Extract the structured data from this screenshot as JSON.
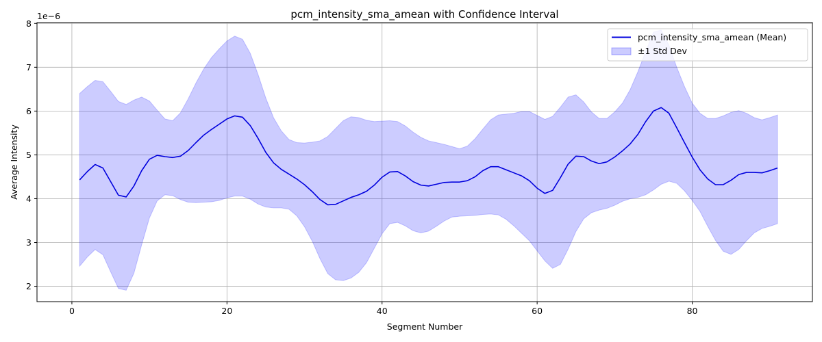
{
  "chart_data": {
    "type": "line",
    "title": "pcm_intensity_sma_amean with Confidence Interval",
    "xlabel": "Segment Number",
    "ylabel": "Average Intensity",
    "y_scale_note": "1e−6",
    "xlim": [
      -4.5,
      95.5
    ],
    "ylim": [
      1.65,
      8.02
    ],
    "xticks": [
      0,
      20,
      40,
      60,
      80
    ],
    "xtick_labels": [
      "0",
      "20",
      "40",
      "60",
      "80"
    ],
    "yticks": [
      2,
      3,
      4,
      5,
      6,
      7,
      8
    ],
    "ytick_labels": [
      "2",
      "3",
      "4",
      "5",
      "6",
      "7",
      "8"
    ],
    "grid": true,
    "legend_position": "top-right",
    "series": [
      {
        "name": "pcm_intensity_sma_amean (Mean)",
        "kind": "line",
        "color": "#0000dd",
        "x": [
          1,
          2,
          3,
          4,
          5,
          6,
          7,
          8,
          9,
          10,
          11,
          12,
          13,
          14,
          15,
          16,
          17,
          18,
          19,
          20,
          21,
          22,
          23,
          24,
          25,
          26,
          27,
          28,
          29,
          30,
          31,
          32,
          33,
          34,
          35,
          36,
          37,
          38,
          39,
          40,
          41,
          42,
          43,
          44,
          45,
          46,
          47,
          48,
          49,
          50,
          51,
          52,
          53,
          54,
          55,
          56,
          57,
          58,
          59,
          60,
          61,
          62,
          63,
          64,
          65,
          66,
          67,
          68,
          69,
          70,
          71,
          72,
          73,
          74,
          75,
          76,
          77,
          78,
          79,
          80,
          81,
          82,
          83,
          84,
          85,
          86,
          87,
          88,
          89,
          90,
          91
        ],
        "values": [
          4.43,
          4.62,
          4.78,
          4.7,
          4.39,
          4.08,
          4.04,
          4.29,
          4.64,
          4.9,
          4.99,
          4.96,
          4.94,
          4.97,
          5.1,
          5.28,
          5.45,
          5.58,
          5.7,
          5.82,
          5.89,
          5.86,
          5.67,
          5.38,
          5.06,
          4.82,
          4.67,
          4.56,
          4.45,
          4.32,
          4.16,
          3.98,
          3.86,
          3.87,
          3.95,
          4.03,
          4.09,
          4.17,
          4.31,
          4.49,
          4.61,
          4.62,
          4.52,
          4.39,
          4.31,
          4.29,
          4.33,
          4.37,
          4.38,
          4.38,
          4.41,
          4.5,
          4.64,
          4.73,
          4.73,
          4.66,
          4.59,
          4.52,
          4.41,
          4.24,
          4.12,
          4.19,
          4.48,
          4.79,
          4.97,
          4.96,
          4.86,
          4.8,
          4.84,
          4.95,
          5.09,
          5.25,
          5.47,
          5.76,
          6.0,
          6.08,
          5.95,
          5.62,
          5.28,
          4.95,
          4.66,
          4.45,
          4.32,
          4.32,
          4.42,
          4.55,
          4.6,
          4.6,
          4.59,
          4.64,
          4.7
        ]
      },
      {
        "name": "±1 Std Dev",
        "kind": "band",
        "color": "#0000ff",
        "x": [
          1,
          2,
          3,
          4,
          5,
          6,
          7,
          8,
          9,
          10,
          11,
          12,
          13,
          14,
          15,
          16,
          17,
          18,
          19,
          20,
          21,
          22,
          23,
          24,
          25,
          26,
          27,
          28,
          29,
          30,
          31,
          32,
          33,
          34,
          35,
          36,
          37,
          38,
          39,
          40,
          41,
          42,
          43,
          44,
          45,
          46,
          47,
          48,
          49,
          50,
          51,
          52,
          53,
          54,
          55,
          56,
          57,
          58,
          59,
          60,
          61,
          62,
          63,
          64,
          65,
          66,
          67,
          68,
          69,
          70,
          71,
          72,
          73,
          74,
          75,
          76,
          77,
          78,
          79,
          80,
          81,
          82,
          83,
          84,
          85,
          86,
          87,
          88,
          89,
          90,
          91
        ],
        "upper": [
          6.4,
          6.56,
          6.7,
          6.67,
          6.45,
          6.22,
          6.15,
          6.25,
          6.32,
          6.23,
          6.02,
          5.82,
          5.78,
          5.96,
          6.28,
          6.64,
          6.96,
          7.22,
          7.42,
          7.6,
          7.71,
          7.64,
          7.32,
          6.84,
          6.3,
          5.85,
          5.55,
          5.35,
          5.28,
          5.27,
          5.29,
          5.32,
          5.42,
          5.6,
          5.78,
          5.87,
          5.85,
          5.79,
          5.76,
          5.77,
          5.78,
          5.76,
          5.66,
          5.52,
          5.4,
          5.32,
          5.28,
          5.24,
          5.19,
          5.14,
          5.2,
          5.37,
          5.59,
          5.8,
          5.91,
          5.93,
          5.95,
          5.99,
          5.99,
          5.9,
          5.81,
          5.88,
          6.09,
          6.32,
          6.37,
          6.21,
          5.98,
          5.83,
          5.83,
          5.98,
          6.18,
          6.49,
          6.9,
          7.36,
          7.8,
          7.85,
          7.5,
          7.0,
          6.56,
          6.18,
          5.95,
          5.83,
          5.83,
          5.89,
          5.97,
          6.01,
          5.95,
          5.85,
          5.8,
          5.85,
          5.91
        ],
        "lower": [
          2.46,
          2.67,
          2.84,
          2.72,
          2.33,
          1.95,
          1.91,
          2.3,
          2.95,
          3.56,
          3.95,
          4.09,
          4.07,
          3.98,
          3.92,
          3.91,
          3.92,
          3.93,
          3.96,
          4.02,
          4.06,
          4.06,
          3.99,
          3.88,
          3.81,
          3.79,
          3.79,
          3.76,
          3.61,
          3.36,
          3.03,
          2.63,
          2.29,
          2.15,
          2.13,
          2.19,
          2.32,
          2.54,
          2.87,
          3.2,
          3.43,
          3.46,
          3.38,
          3.27,
          3.22,
          3.26,
          3.37,
          3.49,
          3.58,
          3.6,
          3.61,
          3.62,
          3.64,
          3.65,
          3.63,
          3.53,
          3.38,
          3.21,
          3.04,
          2.81,
          2.58,
          2.41,
          2.5,
          2.85,
          3.25,
          3.54,
          3.68,
          3.74,
          3.78,
          3.85,
          3.94,
          4.0,
          4.03,
          4.09,
          4.2,
          4.33,
          4.4,
          4.35,
          4.18,
          3.96,
          3.71,
          3.37,
          3.05,
          2.8,
          2.73,
          2.84,
          3.04,
          3.22,
          3.32,
          3.37,
          3.43
        ]
      }
    ]
  }
}
